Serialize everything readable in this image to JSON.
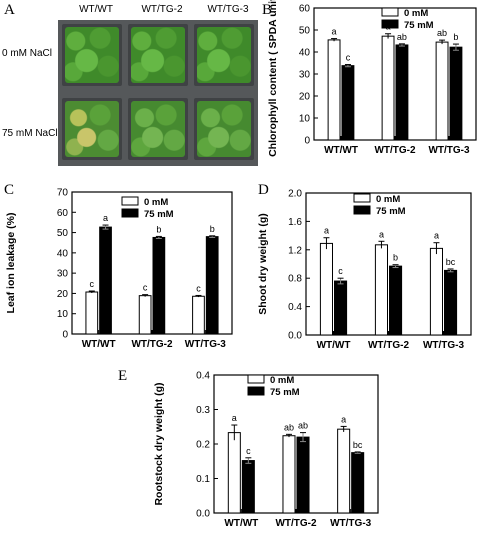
{
  "panel_labels": [
    "A",
    "B",
    "C",
    "D",
    "E"
  ],
  "photo": {
    "columns": [
      "WT/WT",
      "WT/TG-2",
      "WT/TG-3"
    ],
    "rows": [
      "0 mM NaCl",
      "75 mM NaCl"
    ]
  },
  "chart_data": [
    {
      "panel": "B",
      "type": "bar",
      "categories": [
        "WT/WT",
        "WT/TG-2",
        "WT/TG-3"
      ],
      "ylabel": "Chlorophyll content ( SPDA unit )",
      "ylim": [
        0,
        60
      ],
      "yticks": [
        "0",
        "10",
        "20",
        "30",
        "40",
        "50",
        "60"
      ],
      "series": [
        {
          "name": "0 mM",
          "values": [
            45.5,
            47.2,
            44.5
          ],
          "errors": [
            0.6,
            1.1,
            0.9
          ],
          "letters": [
            "a",
            "a",
            "ab"
          ],
          "fill": "#ffffff"
        },
        {
          "name": "75 mM",
          "values": [
            33.8,
            43.2,
            42.2
          ],
          "errors": [
            0.5,
            0.5,
            1.4
          ],
          "letters": [
            "c",
            "ab",
            "b"
          ],
          "fill": "#000000"
        }
      ],
      "legend": "top-right"
    },
    {
      "panel": "C",
      "type": "bar",
      "categories": [
        "WT/WT",
        "WT/TG-2",
        "WT/TG-3"
      ],
      "ylabel": "Leaf ion leakage (%)",
      "ylim": [
        0,
        70
      ],
      "yticks": [
        "0",
        "10",
        "20",
        "30",
        "40",
        "50",
        "60",
        "70"
      ],
      "series": [
        {
          "name": "0 mM",
          "values": [
            20.7,
            18.9,
            18.6
          ],
          "errors": [
            0.5,
            0.5,
            0.4
          ],
          "letters": [
            "c",
            "c",
            "c"
          ],
          "fill": "#ffffff"
        },
        {
          "name": "75 mM",
          "values": [
            52.7,
            47.6,
            48.0
          ],
          "errors": [
            1.0,
            0.5,
            0.4
          ],
          "letters": [
            "a",
            "b",
            "b"
          ],
          "fill": "#000000"
        }
      ],
      "legend": "top-right"
    },
    {
      "panel": "D",
      "type": "bar",
      "categories": [
        "WT/WT",
        "WT/TG-2",
        "WT/TG-3"
      ],
      "ylabel": "Shoot dry weight (g)",
      "ylim": [
        0,
        2.0
      ],
      "yticks": [
        "0.0",
        "0.4",
        "0.8",
        "1.2",
        "1.6",
        "2.0"
      ],
      "series": [
        {
          "name": "0 mM",
          "values": [
            1.29,
            1.27,
            1.22
          ],
          "errors": [
            0.08,
            0.05,
            0.08
          ],
          "letters": [
            "a",
            "a",
            "a"
          ],
          "fill": "#ffffff"
        },
        {
          "name": "75 mM",
          "values": [
            0.76,
            0.97,
            0.91
          ],
          "errors": [
            0.04,
            0.02,
            0.02
          ],
          "letters": [
            "c",
            "b",
            "bc"
          ],
          "fill": "#000000"
        }
      ],
      "legend": "top-right"
    },
    {
      "panel": "E",
      "type": "bar",
      "categories": [
        "WT/WT",
        "WT/TG-2",
        "WT/TG-3"
      ],
      "ylabel": "Rootstock dry weight (g)",
      "ylim": [
        0,
        0.4
      ],
      "yticks": [
        "0.0",
        "0.1",
        "0.2",
        "0.3",
        "0.4"
      ],
      "series": [
        {
          "name": "0 mM",
          "values": [
            0.233,
            0.224,
            0.243
          ],
          "errors": [
            0.022,
            0.004,
            0.008
          ],
          "letters": [
            "a",
            "ab",
            "a"
          ],
          "fill": "#ffffff"
        },
        {
          "name": "75 mM",
          "values": [
            0.152,
            0.22,
            0.175
          ],
          "errors": [
            0.008,
            0.013,
            0.002
          ],
          "letters": [
            "c",
            "ab",
            "bc"
          ],
          "fill": "#000000"
        }
      ],
      "legend": "top-right"
    }
  ]
}
